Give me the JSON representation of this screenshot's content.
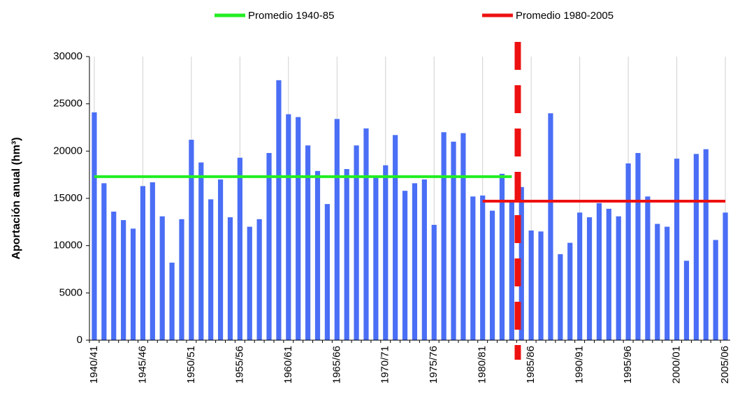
{
  "chart_data": {
    "type": "bar",
    "y_label": "Aportación anual (hm³)",
    "categories": [
      "1940/41",
      null,
      null,
      null,
      null,
      "1945/46",
      null,
      null,
      null,
      null,
      "1950/51",
      null,
      null,
      null,
      null,
      "1955/56",
      null,
      null,
      null,
      null,
      "1960/61",
      null,
      null,
      null,
      null,
      "1965/66",
      null,
      null,
      null,
      null,
      "1970/71",
      null,
      null,
      null,
      null,
      "1975/76",
      null,
      null,
      null,
      null,
      "1980/81",
      null,
      null,
      null,
      null,
      "1985/86",
      null,
      null,
      null,
      null,
      "1990/91",
      null,
      null,
      null,
      null,
      "1995/96",
      null,
      null,
      null,
      null,
      "2000/01",
      null,
      null,
      null,
      null,
      "2005/06"
    ],
    "ylim": [
      0,
      30000
    ],
    "yticks": [
      0,
      5000,
      10000,
      15000,
      20000,
      25000,
      30000
    ],
    "series": [
      {
        "type": "bar",
        "color": "#4a6ef5",
        "values": [
          24100,
          16600,
          13600,
          12700,
          11800,
          16300,
          16700,
          13100,
          8200,
          12800,
          21200,
          18800,
          14900,
          17000,
          13000,
          19300,
          12000,
          12800,
          19800,
          27500,
          23900,
          23600,
          20600,
          17900,
          14400,
          23400,
          18100,
          20600,
          22400,
          17200,
          18500,
          21700,
          15800,
          16600,
          17000,
          12200,
          22000,
          21000,
          21900,
          15200,
          15300,
          13700,
          17600,
          14800,
          16200,
          11600,
          11500,
          24000,
          9100,
          10300,
          13500,
          13000,
          14500,
          13900,
          13100,
          18700,
          19800,
          15200,
          12300,
          12000,
          19200,
          8400,
          19700,
          20200,
          10600,
          13500
        ]
      },
      {
        "type": "line",
        "name": "Promedio 1940-85",
        "color": "#22ee22",
        "values": [
          17300,
          17300,
          17300,
          17300,
          17300,
          17300,
          17300,
          17300,
          17300,
          17300,
          17300,
          17300,
          17300,
          17300,
          17300,
          17300,
          17300,
          17300,
          17300,
          17300,
          17300,
          17300,
          17300,
          17300,
          17300,
          17300,
          17300,
          17300,
          17300,
          17300,
          17300,
          17300,
          17300,
          17300,
          17300,
          17300,
          17300,
          17300,
          17300,
          17300,
          17300,
          17300,
          17300,
          17300,
          null,
          null,
          null,
          null,
          null,
          null,
          null,
          null,
          null,
          null,
          null,
          null,
          null,
          null,
          null,
          null,
          null,
          null,
          null,
          null,
          null,
          null
        ]
      },
      {
        "type": "line",
        "name": "Promedio 1980-2005",
        "color": "#ee1111",
        "values": [
          null,
          null,
          null,
          null,
          null,
          null,
          null,
          null,
          null,
          null,
          null,
          null,
          null,
          null,
          null,
          null,
          null,
          null,
          null,
          null,
          null,
          null,
          null,
          null,
          null,
          null,
          null,
          null,
          null,
          null,
          null,
          null,
          null,
          null,
          null,
          null,
          null,
          null,
          null,
          null,
          14700,
          14700,
          14700,
          14700,
          14700,
          14700,
          14700,
          14700,
          14700,
          14700,
          14700,
          14700,
          14700,
          14700,
          14700,
          14700,
          14700,
          14700,
          14700,
          14700,
          14700,
          14700,
          14700,
          14700,
          14700,
          14700
        ]
      }
    ]
  }
}
